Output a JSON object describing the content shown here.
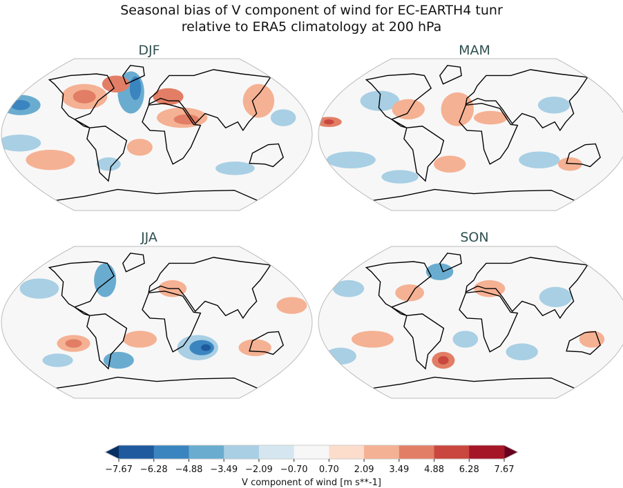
{
  "chart_data": {
    "type": "heatmap",
    "title_lines": [
      "Seasonal bias of V component of wind for EC-EARTH4 tunr",
      "relative to ERA5 climatology at 200 hPa"
    ],
    "panels": [
      {
        "title": "DJF"
      },
      {
        "title": "MAM"
      },
      {
        "title": "JJA"
      },
      {
        "title": "SON"
      }
    ],
    "colorbar": {
      "label": "V component of wind [m s**-1]",
      "ticks": [
        "−7.67",
        "−6.28",
        "−4.88",
        "−3.49",
        "−2.09",
        "−0.70",
        "0.70",
        "2.09",
        "3.49",
        "4.88",
        "6.28",
        "7.67"
      ],
      "levels": [
        -7.67,
        -6.28,
        -4.88,
        -3.49,
        -2.09,
        -0.7,
        0.7,
        2.09,
        3.49,
        4.88,
        6.28,
        7.67
      ],
      "colors": [
        "#1f5a9e",
        "#3a85bf",
        "#6aacd0",
        "#a8cfe4",
        "#d5e6f0",
        "#f7f7f7",
        "#fcdccb",
        "#f5b193",
        "#e27e66",
        "#c9473f",
        "#a51627"
      ],
      "extend_low_color": "#083062",
      "extend_high_color": "#67001f",
      "extend": "both"
    },
    "projection": "Robinson",
    "coastlines": true
  }
}
